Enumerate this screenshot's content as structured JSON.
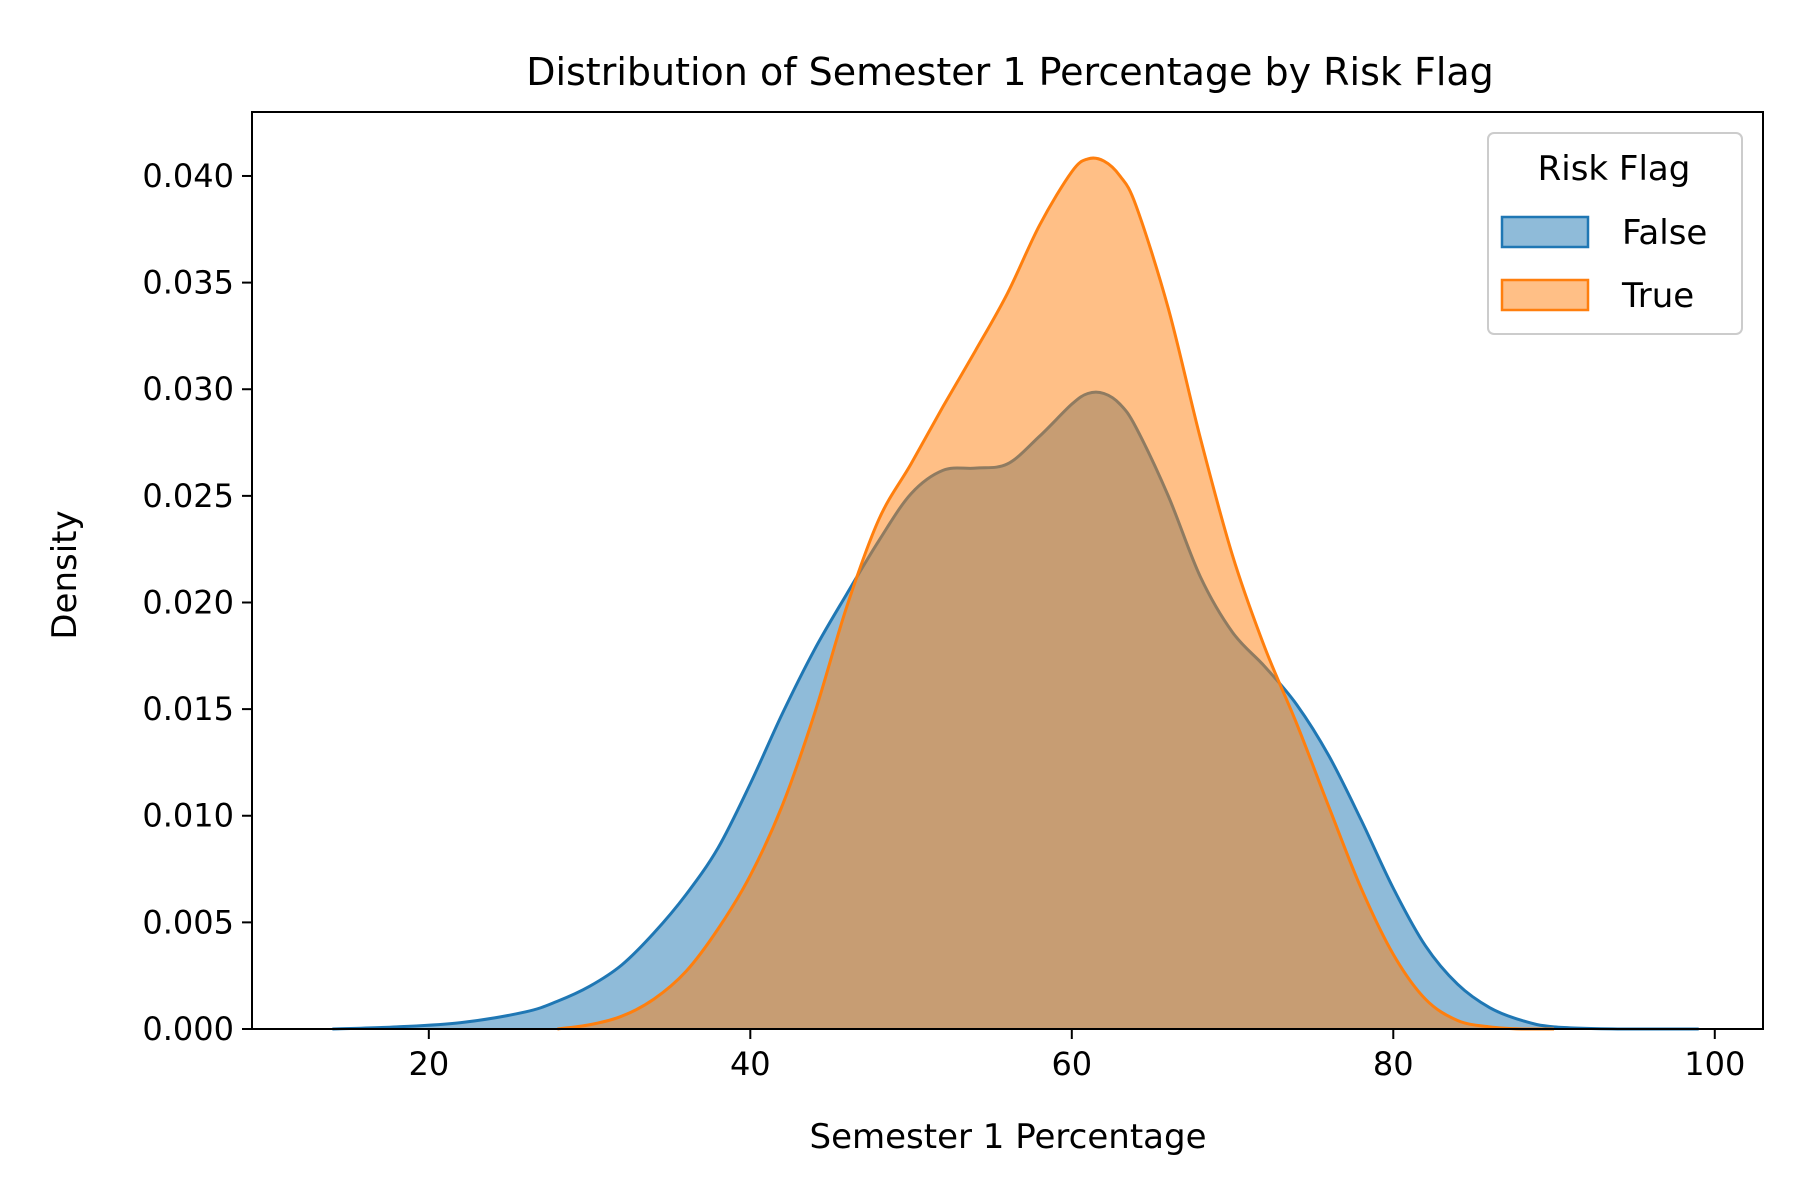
{
  "chart_data": {
    "type": "area",
    "title": "Distribution of Semester 1 Percentage by Risk Flag",
    "xlabel": "Semester 1 Percentage",
    "ylabel": "Density",
    "xlim": [
      9,
      103
    ],
    "ylim": [
      0,
      0.043
    ],
    "xticks": [
      20,
      40,
      60,
      80,
      100
    ],
    "yticks": [
      0.0,
      0.005,
      0.01,
      0.015,
      0.02,
      0.025,
      0.03,
      0.035,
      0.04
    ],
    "ytick_labels": [
      "0.000",
      "0.005",
      "0.010",
      "0.015",
      "0.020",
      "0.025",
      "0.030",
      "0.035",
      "0.040"
    ],
    "grid": false,
    "legend": {
      "title": "Risk Flag",
      "position": "top-right"
    },
    "series": [
      {
        "name": "False",
        "color": "#1f77b4",
        "fill_opacity": 0.5,
        "x": [
          14,
          18,
          22,
          26,
          28,
          30,
          32,
          34,
          36,
          38,
          40,
          42,
          44,
          46,
          48,
          50,
          52,
          54,
          56,
          58,
          60,
          61,
          62,
          63,
          64,
          66,
          68,
          70,
          72,
          74,
          76,
          78,
          80,
          82,
          84,
          86,
          88,
          90,
          94,
          99
        ],
        "y": [
          0.0,
          0.0001,
          0.0003,
          0.0008,
          0.0013,
          0.002,
          0.003,
          0.0045,
          0.0063,
          0.0085,
          0.0115,
          0.0148,
          0.0178,
          0.0204,
          0.0229,
          0.0251,
          0.0262,
          0.0263,
          0.0265,
          0.0278,
          0.0293,
          0.0298,
          0.0298,
          0.0293,
          0.0282,
          0.025,
          0.0212,
          0.0186,
          0.017,
          0.0152,
          0.0128,
          0.0098,
          0.0066,
          0.0039,
          0.0021,
          0.001,
          0.0004,
          0.0001,
          0.0,
          0.0
        ]
      },
      {
        "name": "True",
        "color": "#ff7f0e",
        "fill_opacity": 0.5,
        "x": [
          28,
          30,
          32,
          34,
          36,
          38,
          40,
          42,
          44,
          46,
          48,
          50,
          52,
          54,
          56,
          58,
          60,
          61,
          62,
          63,
          64,
          66,
          68,
          70,
          72,
          74,
          76,
          78,
          80,
          82,
          84,
          86,
          88,
          90
        ],
        "y": [
          0.0,
          0.0002,
          0.0006,
          0.0014,
          0.0027,
          0.0047,
          0.0072,
          0.0105,
          0.0148,
          0.0198,
          0.0239,
          0.0265,
          0.0292,
          0.0318,
          0.0345,
          0.0377,
          0.0402,
          0.0408,
          0.0407,
          0.04,
          0.0386,
          0.0338,
          0.0277,
          0.0222,
          0.0179,
          0.0143,
          0.0104,
          0.0066,
          0.0035,
          0.0014,
          0.0004,
          0.0001,
          0.0,
          0.0
        ]
      }
    ]
  }
}
